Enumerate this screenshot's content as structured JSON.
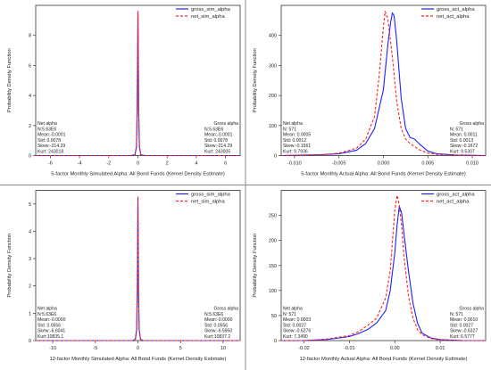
{
  "chart_data": [
    {
      "type": "line",
      "xlabel": "5-factor Monthly Simulated Alpha: All Bond Funds (Kernel Density Estimate)",
      "ylabel": "Probability Density Function",
      "xlim": [
        -7,
        7
      ],
      "ylim": [
        0,
        10
      ],
      "xticks": [
        -6,
        -4,
        -2,
        0,
        2,
        4,
        6
      ],
      "yticks": [
        0,
        2,
        4,
        6,
        8
      ],
      "xtick_labels": [
        "-6",
        "-4",
        "-2",
        "0",
        "2",
        "4",
        "6"
      ],
      "ytick_labels": [
        "0",
        "2",
        "4",
        "6",
        "8"
      ],
      "legend": "top-right",
      "series": [
        {
          "name": "gross_sim_alpha",
          "color": "#1f1fff",
          "dash": "solid",
          "x": [
            -7,
            -0.5,
            -0.2,
            -0.1,
            -0.05,
            0,
            0.05,
            0.1,
            0.2,
            0.5,
            7
          ],
          "y": [
            0,
            0,
            0.05,
            0.6,
            3.0,
            9.6,
            3.0,
            0.6,
            0.05,
            0,
            0
          ]
        },
        {
          "name": "net_sim_alpha",
          "color": "#ff2020",
          "dash": "dashed",
          "x": [
            -7,
            -0.5,
            -0.2,
            -0.1,
            -0.05,
            0,
            0.05,
            0.1,
            0.2,
            0.5,
            7
          ],
          "y": [
            0,
            0,
            0.05,
            0.6,
            3.0,
            9.6,
            3.0,
            0.6,
            0.05,
            0,
            0
          ]
        }
      ],
      "stats_left": {
        "title": "Net alpha",
        "lines": [
          "N:5.63E6",
          "Mean:-0.0001",
          "Std: 0.0078",
          "Skew:-214.29",
          "Kurt: 243018"
        ]
      },
      "stats_right": {
        "title": "Gross alpha",
        "lines": [
          "N:5.63E6",
          "Mean:-0.0001",
          "Std: 0.0078",
          "Skew:-214.29",
          "Kurt: 243005"
        ]
      }
    },
    {
      "type": "line",
      "xlabel": "5-factor Monthly Actual Alpha: All Bond Funds (Kernel Density Estimate)",
      "ylabel": "Probability Density Function",
      "xlim": [
        -0.0115,
        0.0115
      ],
      "ylim": [
        0,
        500
      ],
      "xticks": [
        -0.01,
        -0.005,
        0,
        0.005,
        0.01
      ],
      "yticks": [
        0,
        100,
        200,
        300,
        400
      ],
      "xtick_labels": [
        "-0.010",
        "-0.005",
        "0.000",
        "0.005",
        "0.010"
      ],
      "ytick_labels": [
        "0",
        "100",
        "200",
        "300",
        "400"
      ],
      "legend": "top-right",
      "series": [
        {
          "name": "gross_act_alpha",
          "color": "#1f1fff",
          "dash": "solid",
          "x": [
            -0.0115,
            -0.007,
            -0.005,
            -0.003,
            -0.002,
            -0.001,
            0,
            0.0005,
            0.0008,
            0.001,
            0.0012,
            0.0015,
            0.002,
            0.0025,
            0.003,
            0.0035,
            0.004,
            0.005,
            0.006,
            0.008,
            0.0115
          ],
          "y": [
            0,
            3,
            6,
            18,
            40,
            90,
            220,
            370,
            440,
            475,
            465,
            380,
            190,
            90,
            60,
            55,
            40,
            15,
            6,
            2,
            0
          ]
        },
        {
          "name": "net_act_alpha",
          "color": "#ff2020",
          "dash": "dashed",
          "x": [
            -0.0115,
            -0.007,
            -0.005,
            -0.003,
            -0.002,
            -0.001,
            -0.0005,
            0,
            0.0002,
            0.0005,
            0.001,
            0.0015,
            0.002,
            0.0025,
            0.003,
            0.004,
            0.005,
            0.006,
            0.008,
            0.0115
          ],
          "y": [
            0,
            3,
            8,
            25,
            55,
            130,
            260,
            430,
            480,
            455,
            330,
            180,
            90,
            55,
            40,
            20,
            8,
            4,
            1,
            0
          ]
        }
      ],
      "stats_left": {
        "title": "Net alpha",
        "lines": [
          "N:   571",
          "Mean: 0.0005",
          "Std: 0.0012",
          "Skew:-0.1561",
          "Kurt: 9.7936"
        ]
      },
      "stats_right": {
        "title": "Gross alpha",
        "lines": [
          "N:   571",
          "Mean: 0.0011",
          "Std: 0.0013",
          "Skew:-0.1672",
          "Kurt: 9.5307"
        ]
      }
    },
    {
      "type": "line",
      "xlabel": "12-factor Monthly Simulated Alpha: All Bond Funds (Kernel Density Estimate)",
      "ylabel": "Probability Density Function",
      "xlim": [
        -12,
        12
      ],
      "ylim": [
        0,
        5.5
      ],
      "xticks": [
        -10,
        -5,
        0,
        5,
        10
      ],
      "yticks": [
        0,
        1,
        2,
        3,
        4,
        5
      ],
      "xtick_labels": [
        "-10",
        "-5",
        "0",
        "5",
        "10"
      ],
      "ytick_labels": [
        "0",
        "1",
        "2",
        "3",
        "4",
        "5"
      ],
      "legend": "top-right",
      "series": [
        {
          "name": "gross_sim_alpha",
          "color": "#1f1fff",
          "dash": "solid",
          "x": [
            -12,
            -0.6,
            -0.3,
            -0.15,
            -0.07,
            0,
            0.07,
            0.15,
            0.3,
            0.6,
            12
          ],
          "y": [
            0,
            0,
            0.05,
            0.4,
            1.8,
            5.25,
            1.8,
            0.4,
            0.05,
            0,
            0
          ]
        },
        {
          "name": "net_sim_alpha",
          "color": "#ff2020",
          "dash": "dashed",
          "x": [
            -12,
            -0.6,
            -0.3,
            -0.15,
            -0.07,
            0,
            0.07,
            0.15,
            0.3,
            0.6,
            12
          ],
          "y": [
            0,
            0,
            0.05,
            0.4,
            1.8,
            5.25,
            1.8,
            0.4,
            0.05,
            0,
            0
          ]
        }
      ],
      "stats_left": {
        "title": "Net alpha",
        "lines": [
          "N:5.63E6",
          "Mean:-0.0000",
          "Std: 0.0556",
          "Skew:-6.6041",
          "Kurt:10835.1"
        ]
      },
      "stats_right": {
        "title": "Gross alpha",
        "lines": [
          "N:5.63E6",
          "Mean:-0.0000",
          "Std: 0.0556",
          "Skew:-6.5950",
          "Kurt:10837.2"
        ]
      }
    },
    {
      "type": "line",
      "xlabel": "12-factor Monthly Actual Alpha: All Bond Funds (Kernel Density Estimate)",
      "ylabel": "Probability Density Function",
      "xlim": [
        -0.025,
        0.02
      ],
      "ylim": [
        0,
        300
      ],
      "xticks": [
        -0.02,
        -0.01,
        0,
        0.01
      ],
      "yticks": [
        0,
        50,
        100,
        150,
        200,
        250
      ],
      "xtick_labels": [
        "-0.02",
        "-0.01",
        "0.00",
        "0.01"
      ],
      "ytick_labels": [
        "0",
        "50",
        "100",
        "150",
        "200",
        "250"
      ],
      "legend": "top-right",
      "series": [
        {
          "name": "gross_act_alpha",
          "color": "#1f1fff",
          "dash": "solid",
          "x": [
            -0.025,
            -0.02,
            -0.015,
            -0.01,
            -0.008,
            -0.006,
            -0.004,
            -0.002,
            -0.001,
            0,
            0.0005,
            0.001,
            0.0015,
            0.002,
            0.003,
            0.004,
            0.005,
            0.006,
            0.008,
            0.01,
            0.015,
            0.02
          ],
          "y": [
            0,
            0,
            2,
            8,
            14,
            22,
            35,
            60,
            100,
            175,
            230,
            268,
            255,
            215,
            140,
            75,
            35,
            15,
            5,
            2,
            0,
            0
          ]
        },
        {
          "name": "net_act_alpha",
          "color": "#ff2020",
          "dash": "dashed",
          "x": [
            -0.025,
            -0.02,
            -0.015,
            -0.01,
            -0.008,
            -0.006,
            -0.004,
            -0.002,
            -0.001,
            -0.0005,
            0,
            0.0005,
            0.001,
            0.0015,
            0.002,
            0.003,
            0.004,
            0.005,
            0.006,
            0.008,
            0.01,
            0.015,
            0.02
          ],
          "y": [
            0,
            0,
            3,
            10,
            18,
            30,
            45,
            85,
            140,
            200,
            260,
            290,
            270,
            230,
            170,
            90,
            45,
            22,
            12,
            4,
            1,
            0,
            0
          ]
        }
      ],
      "stats_left": {
        "title": "Net alpha",
        "lines": [
          "N:   571",
          "Mean: 0.0003",
          "Std: 0.0027",
          "Skew:-0.6276",
          "Kurt: 7.3490"
        ]
      },
      "stats_right": {
        "title": "Gross alpha",
        "lines": [
          "N:   571",
          "Mean: 0.0010",
          "Std: 0.0027",
          "Skew:-0.6327",
          "Kurt: 6.5777"
        ]
      }
    }
  ]
}
